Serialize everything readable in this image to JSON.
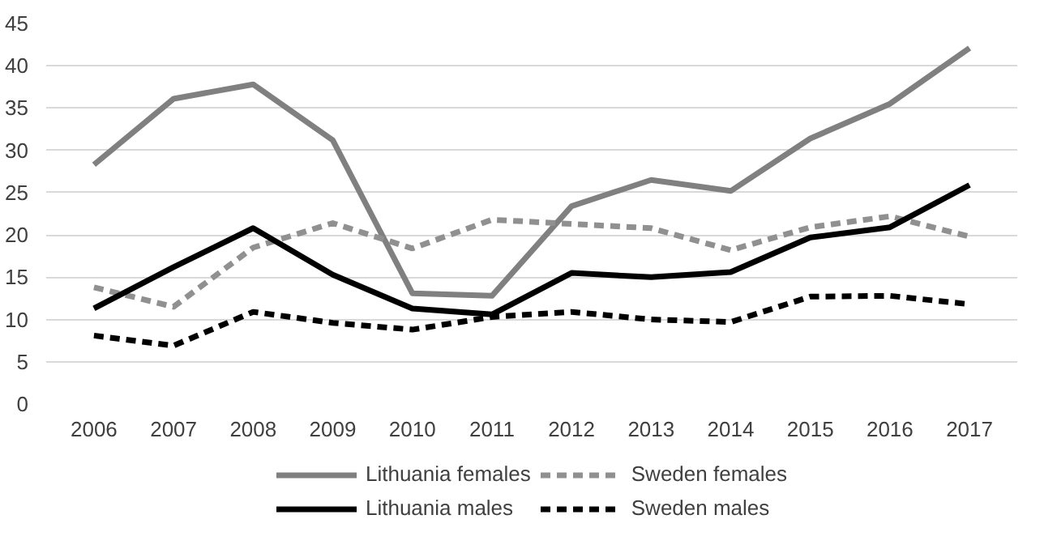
{
  "chart_data": {
    "type": "line",
    "categories": [
      "2006",
      "2007",
      "2008",
      "2009",
      "2010",
      "2011",
      "2012",
      "2013",
      "2014",
      "2015",
      "2016",
      "2017"
    ],
    "ylim": [
      0,
      45
    ],
    "yticks": [
      0,
      5,
      10,
      15,
      20,
      25,
      30,
      35,
      40,
      45
    ],
    "grid": "y",
    "legend": "bottom",
    "marker": "none",
    "series": [
      {
        "name": "Lithuania females",
        "color": "#808080",
        "line_style": "solid",
        "values": [
          28.3,
          36.1,
          37.8,
          31.2,
          13.1,
          12.8,
          23.4,
          26.5,
          25.2,
          31.4,
          35.5,
          42.1
        ]
      },
      {
        "name": "Sweden females",
        "color": "#909090",
        "line_style": "dashed",
        "values": [
          13.8,
          11.5,
          18.5,
          21.4,
          18.4,
          21.8,
          21.3,
          20.8,
          18.2,
          20.9,
          22.2,
          19.8
        ]
      },
      {
        "name": "Lithuania males",
        "color": "#000000",
        "line_style": "solid",
        "values": [
          11.3,
          16.2,
          20.8,
          15.3,
          11.3,
          10.6,
          15.5,
          15.0,
          15.6,
          19.7,
          20.9,
          25.9
        ]
      },
      {
        "name": "Sweden males",
        "color": "#000000",
        "line_style": "dashed",
        "values": [
          8.1,
          6.9,
          10.9,
          9.6,
          8.8,
          10.3,
          10.9,
          10.0,
          9.7,
          12.7,
          12.8,
          11.8
        ]
      }
    ]
  }
}
